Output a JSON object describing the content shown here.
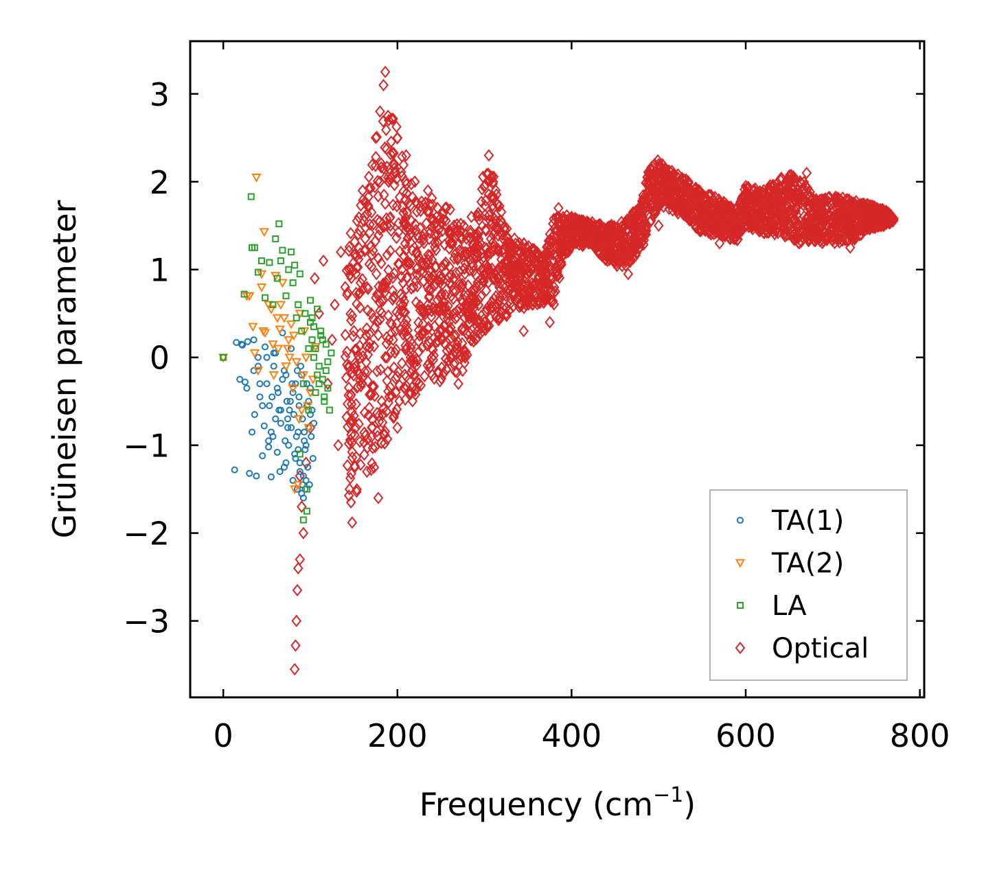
{
  "chart_data": {
    "type": "scatter",
    "title": "",
    "xlabel": "Frequency (cm",
    "xlabel_sup": "−1",
    "xlabel_close": ")",
    "ylabel": "Grüneisen parameter",
    "xlim": [
      -38,
      805
    ],
    "ylim": [
      -3.87,
      3.6
    ],
    "xticks": [
      0,
      200,
      400,
      600,
      800
    ],
    "xtick_labels": [
      "0",
      "200",
      "400",
      "600",
      "800"
    ],
    "yticks": [
      3,
      2,
      1,
      0,
      -1,
      -2,
      -3
    ],
    "ytick_labels": [
      "3",
      "2",
      "1",
      "0",
      "−1",
      "−2",
      "−3"
    ],
    "grid": false,
    "legend_position": "bottom-right",
    "series": [
      {
        "name": "TA(1)",
        "marker": "circle",
        "color": "#1f77b4",
        "x": [
          0,
          13,
          15,
          19,
          21,
          22,
          25,
          27,
          28,
          30,
          33,
          35,
          36,
          38,
          40,
          42,
          45,
          47,
          48,
          50,
          52,
          53,
          55,
          57,
          58,
          60,
          62,
          63,
          65,
          66,
          68,
          70,
          71,
          72,
          74,
          75,
          77,
          78,
          80,
          81,
          82,
          83,
          85,
          86,
          87,
          88,
          89,
          90,
          91,
          92,
          93,
          94,
          95,
          96,
          97,
          98,
          99,
          100,
          101,
          102,
          103,
          104,
          40,
          45,
          55,
          62,
          70,
          76,
          84,
          88,
          92,
          95,
          98,
          60,
          68,
          74,
          80,
          86,
          90,
          94,
          35,
          42,
          50,
          56,
          64,
          72,
          78,
          85,
          91,
          96,
          100,
          52,
          58,
          66,
          73,
          79,
          83,
          87,
          93
        ],
        "y": [
          0.0,
          -1.28,
          0.17,
          -0.25,
          0.15,
          0.14,
          -0.28,
          -0.35,
          0.18,
          -1.32,
          -0.85,
          0.2,
          -0.65,
          -1.35,
          0.0,
          -0.45,
          -1.12,
          -0.78,
          0.12,
          -0.3,
          -1.02,
          -0.55,
          -1.36,
          -0.9,
          0.05,
          -0.7,
          -1.08,
          -0.4,
          -1.3,
          -0.6,
          0.28,
          -1.25,
          -0.95,
          -0.2,
          -0.8,
          -1.0,
          -0.5,
          0.1,
          -1.4,
          -0.65,
          -1.1,
          -0.3,
          -1.5,
          -0.85,
          -0.45,
          -1.2,
          -0.1,
          -1.55,
          -0.7,
          -1.35,
          -0.95,
          -1.05,
          -1.4,
          -0.55,
          -1.25,
          -0.8,
          -1.45,
          -0.35,
          -0.9,
          -0.6,
          -1.15,
          -0.75,
          -0.1,
          -0.55,
          -0.85,
          -0.35,
          -0.15,
          -0.6,
          -0.9,
          -1.3,
          -1.6,
          -1.0,
          -0.5,
          0.05,
          -0.25,
          -0.7,
          -0.4,
          -1.05,
          -0.2,
          -1.5,
          -0.15,
          -0.3,
          0.0,
          -0.45,
          -0.6,
          -1.2,
          -0.8,
          -0.15,
          -1.45,
          -0.3,
          -0.65,
          -0.95,
          -0.1,
          -0.75,
          -0.5,
          -0.3,
          -1.15,
          -0.55,
          -0.85
        ]
      },
      {
        "name": "TA(2)",
        "marker": "triangle-down",
        "color": "#ff7f0e",
        "x": [
          0,
          27,
          30,
          34,
          38,
          40,
          44,
          47,
          48,
          52,
          55,
          57,
          60,
          63,
          65,
          68,
          70,
          72,
          75,
          78,
          80,
          82,
          84,
          86,
          88,
          90,
          92,
          95,
          98,
          100,
          103,
          106,
          36,
          46,
          58,
          66,
          74,
          81,
          87,
          93,
          97,
          44,
          62,
          76
        ],
        "y": [
          0.0,
          0.7,
          0.7,
          0.35,
          2.05,
          -0.15,
          0.8,
          1.43,
          0.28,
          0.6,
          0.55,
          0.15,
          0.93,
          0.1,
          0.32,
          0.85,
          0.45,
          -0.1,
          0.2,
          0.38,
          -0.35,
          -1.5,
          -0.05,
          -1.45,
          0.5,
          -0.6,
          -0.2,
          0.0,
          -0.8,
          -0.4,
          -0.25,
          0.12,
          0.05,
          0.3,
          -0.2,
          0.6,
          0.1,
          0.25,
          -0.7,
          0.3,
          -0.55,
          0.95,
          0.45,
          0.0
        ]
      },
      {
        "name": "LA",
        "marker": "square",
        "color": "#2ca02c",
        "x": [
          0,
          24,
          32,
          33,
          36,
          40,
          44,
          48,
          53,
          57,
          60,
          62,
          64,
          66,
          68,
          72,
          75,
          78,
          80,
          82,
          84,
          86,
          88,
          90,
          92,
          94,
          96,
          98,
          100,
          102,
          104,
          106,
          108,
          110,
          112,
          114,
          116,
          118,
          120,
          122,
          124,
          92,
          96,
          100,
          104,
          108,
          112,
          116,
          120,
          102,
          106,
          110,
          114,
          118,
          88,
          98
        ],
        "y": [
          0.0,
          0.72,
          1.83,
          1.25,
          1.25,
          0.97,
          1.1,
          0.68,
          1.08,
          0.6,
          1.35,
          0.9,
          1.52,
          1.1,
          1.22,
          0.7,
          1.0,
          1.2,
          0.85,
          1.05,
          0.45,
          0.6,
          0.95,
          0.3,
          -1.85,
          0.5,
          -1.75,
          0.1,
          0.65,
          0.2,
          0.35,
          -0.4,
          0.55,
          -0.1,
          0.3,
          -0.25,
          -0.5,
          0.15,
          -0.35,
          -0.6,
          0.05,
          -0.3,
          -1.5,
          0.4,
          0.0,
          -0.2,
          0.25,
          -0.45,
          -0.05,
          0.45,
          0.1,
          -0.3,
          0.2,
          -0.15,
          -1.1,
          -0.6
        ]
      },
      {
        "name": "Optical",
        "marker": "diamond",
        "color": "#d62728",
        "x": [
          82,
          83,
          84,
          85,
          86,
          88,
          88,
          90,
          92,
          95,
          100,
          105,
          110,
          115,
          120,
          125,
          128,
          132,
          135,
          140,
          145,
          148,
          150,
          155,
          160,
          165,
          170,
          175,
          178,
          180,
          182,
          184,
          186,
          188,
          190,
          192,
          195,
          198,
          200,
          205,
          210,
          215,
          220,
          225,
          230,
          235,
          240,
          245,
          250,
          255,
          260,
          265,
          270,
          275,
          280,
          285,
          290,
          295,
          300,
          305,
          310,
          315,
          320,
          325,
          330,
          335,
          340,
          345,
          350,
          355,
          360,
          365,
          370,
          375,
          380,
          385,
          390,
          395,
          400,
          410,
          420,
          430,
          440,
          450,
          460,
          465,
          470,
          480,
          490,
          500,
          510,
          520,
          530,
          540,
          550,
          560,
          570,
          580,
          590,
          600,
          610,
          620,
          630,
          640,
          650,
          660,
          670,
          680,
          690,
          700,
          710,
          720,
          730,
          740,
          750,
          760,
          770,
          186,
          188,
          190,
          195,
          200,
          305,
          310,
          500,
          655,
          720
        ],
        "y": [
          -3.55,
          -3.28,
          -3.0,
          -2.65,
          -2.4,
          -2.3,
          -1.35,
          -1.7,
          -2.0,
          -1.2,
          -0.8,
          0.9,
          0.5,
          1.1,
          -0.3,
          0.2,
          0.6,
          -1.0,
          1.2,
          0.8,
          -1.5,
          -1.88,
          0.3,
          1.4,
          1.9,
          -1.3,
          0.5,
          2.5,
          -1.6,
          2.8,
          -0.5,
          3.1,
          3.25,
          0.0,
          2.7,
          1.5,
          2.2,
          -0.4,
          2.5,
          1.0,
          2.3,
          0.0,
          2.0,
          1.3,
          0.5,
          1.9,
          -0.2,
          1.6,
          0.9,
          1.7,
          0.3,
          1.5,
          -0.3,
          1.2,
          0.6,
          1.6,
          0.8,
          1.3,
          0.4,
          2.3,
          1.7,
          0.9,
          1.4,
          0.5,
          1.2,
          0.8,
          1.3,
          0.3,
          1.1,
          0.6,
          1.2,
          0.7,
          1.0,
          0.4,
          0.8,
          1.7,
          1.3,
          1.2,
          1.6,
          1.5,
          1.3,
          1.5,
          1.2,
          1.4,
          1.1,
          0.95,
          1.2,
          1.4,
          1.9,
          2.2,
          2.1,
          1.9,
          1.7,
          1.6,
          1.5,
          1.4,
          1.3,
          1.5,
          1.7,
          1.95,
          1.9,
          1.7,
          1.5,
          1.8,
          2.0,
          1.9,
          2.1,
          1.7,
          1.8,
          1.6,
          1.5,
          1.25,
          1.7,
          1.6,
          1.5,
          1.65,
          1.58,
          0.8,
          1.5,
          2.0,
          0.2,
          -0.8,
          1.0,
          2.0,
          1.5,
          1.4,
          1.4
        ],
        "band": [
          [
            140,
            -1.6,
            1.3
          ],
          [
            150,
            -1.7,
            1.5
          ],
          [
            160,
            -1.2,
            1.8
          ],
          [
            170,
            -1.4,
            2.2
          ],
          [
            180,
            -1.0,
            2.8
          ],
          [
            190,
            -1.0,
            2.9
          ],
          [
            200,
            -0.6,
            2.6
          ],
          [
            210,
            -0.5,
            2.2
          ],
          [
            220,
            -0.5,
            2.1
          ],
          [
            230,
            -0.3,
            1.8
          ],
          [
            240,
            -0.2,
            1.9
          ],
          [
            250,
            -0.4,
            1.7
          ],
          [
            260,
            0.0,
            1.8
          ],
          [
            270,
            -0.3,
            1.5
          ],
          [
            280,
            0.0,
            1.6
          ],
          [
            290,
            0.2,
            1.5
          ],
          [
            300,
            0.3,
            2.2
          ],
          [
            310,
            0.4,
            2.1
          ],
          [
            320,
            0.4,
            1.7
          ],
          [
            330,
            0.5,
            1.4
          ],
          [
            340,
            0.5,
            1.3
          ],
          [
            350,
            0.6,
            1.3
          ],
          [
            360,
            0.6,
            1.2
          ],
          [
            370,
            0.6,
            1.2
          ],
          [
            380,
            0.6,
            1.6
          ],
          [
            390,
            1.1,
            1.65
          ],
          [
            400,
            1.2,
            1.6
          ],
          [
            420,
            1.3,
            1.55
          ],
          [
            440,
            1.1,
            1.5
          ],
          [
            460,
            1.0,
            1.55
          ],
          [
            480,
            1.2,
            1.75
          ],
          [
            490,
            1.5,
            2.2
          ],
          [
            500,
            1.7,
            2.25
          ],
          [
            510,
            1.7,
            2.15
          ],
          [
            530,
            1.6,
            2.05
          ],
          [
            550,
            1.4,
            1.9
          ],
          [
            570,
            1.4,
            1.8
          ],
          [
            590,
            1.3,
            1.7
          ],
          [
            600,
            1.5,
            1.95
          ],
          [
            620,
            1.4,
            1.9
          ],
          [
            640,
            1.4,
            2.05
          ],
          [
            660,
            1.3,
            2.1
          ],
          [
            680,
            1.3,
            1.8
          ],
          [
            700,
            1.3,
            1.85
          ],
          [
            720,
            1.3,
            1.8
          ],
          [
            740,
            1.45,
            1.75
          ],
          [
            760,
            1.5,
            1.68
          ],
          [
            770,
            1.55,
            1.6
          ]
        ]
      }
    ]
  }
}
